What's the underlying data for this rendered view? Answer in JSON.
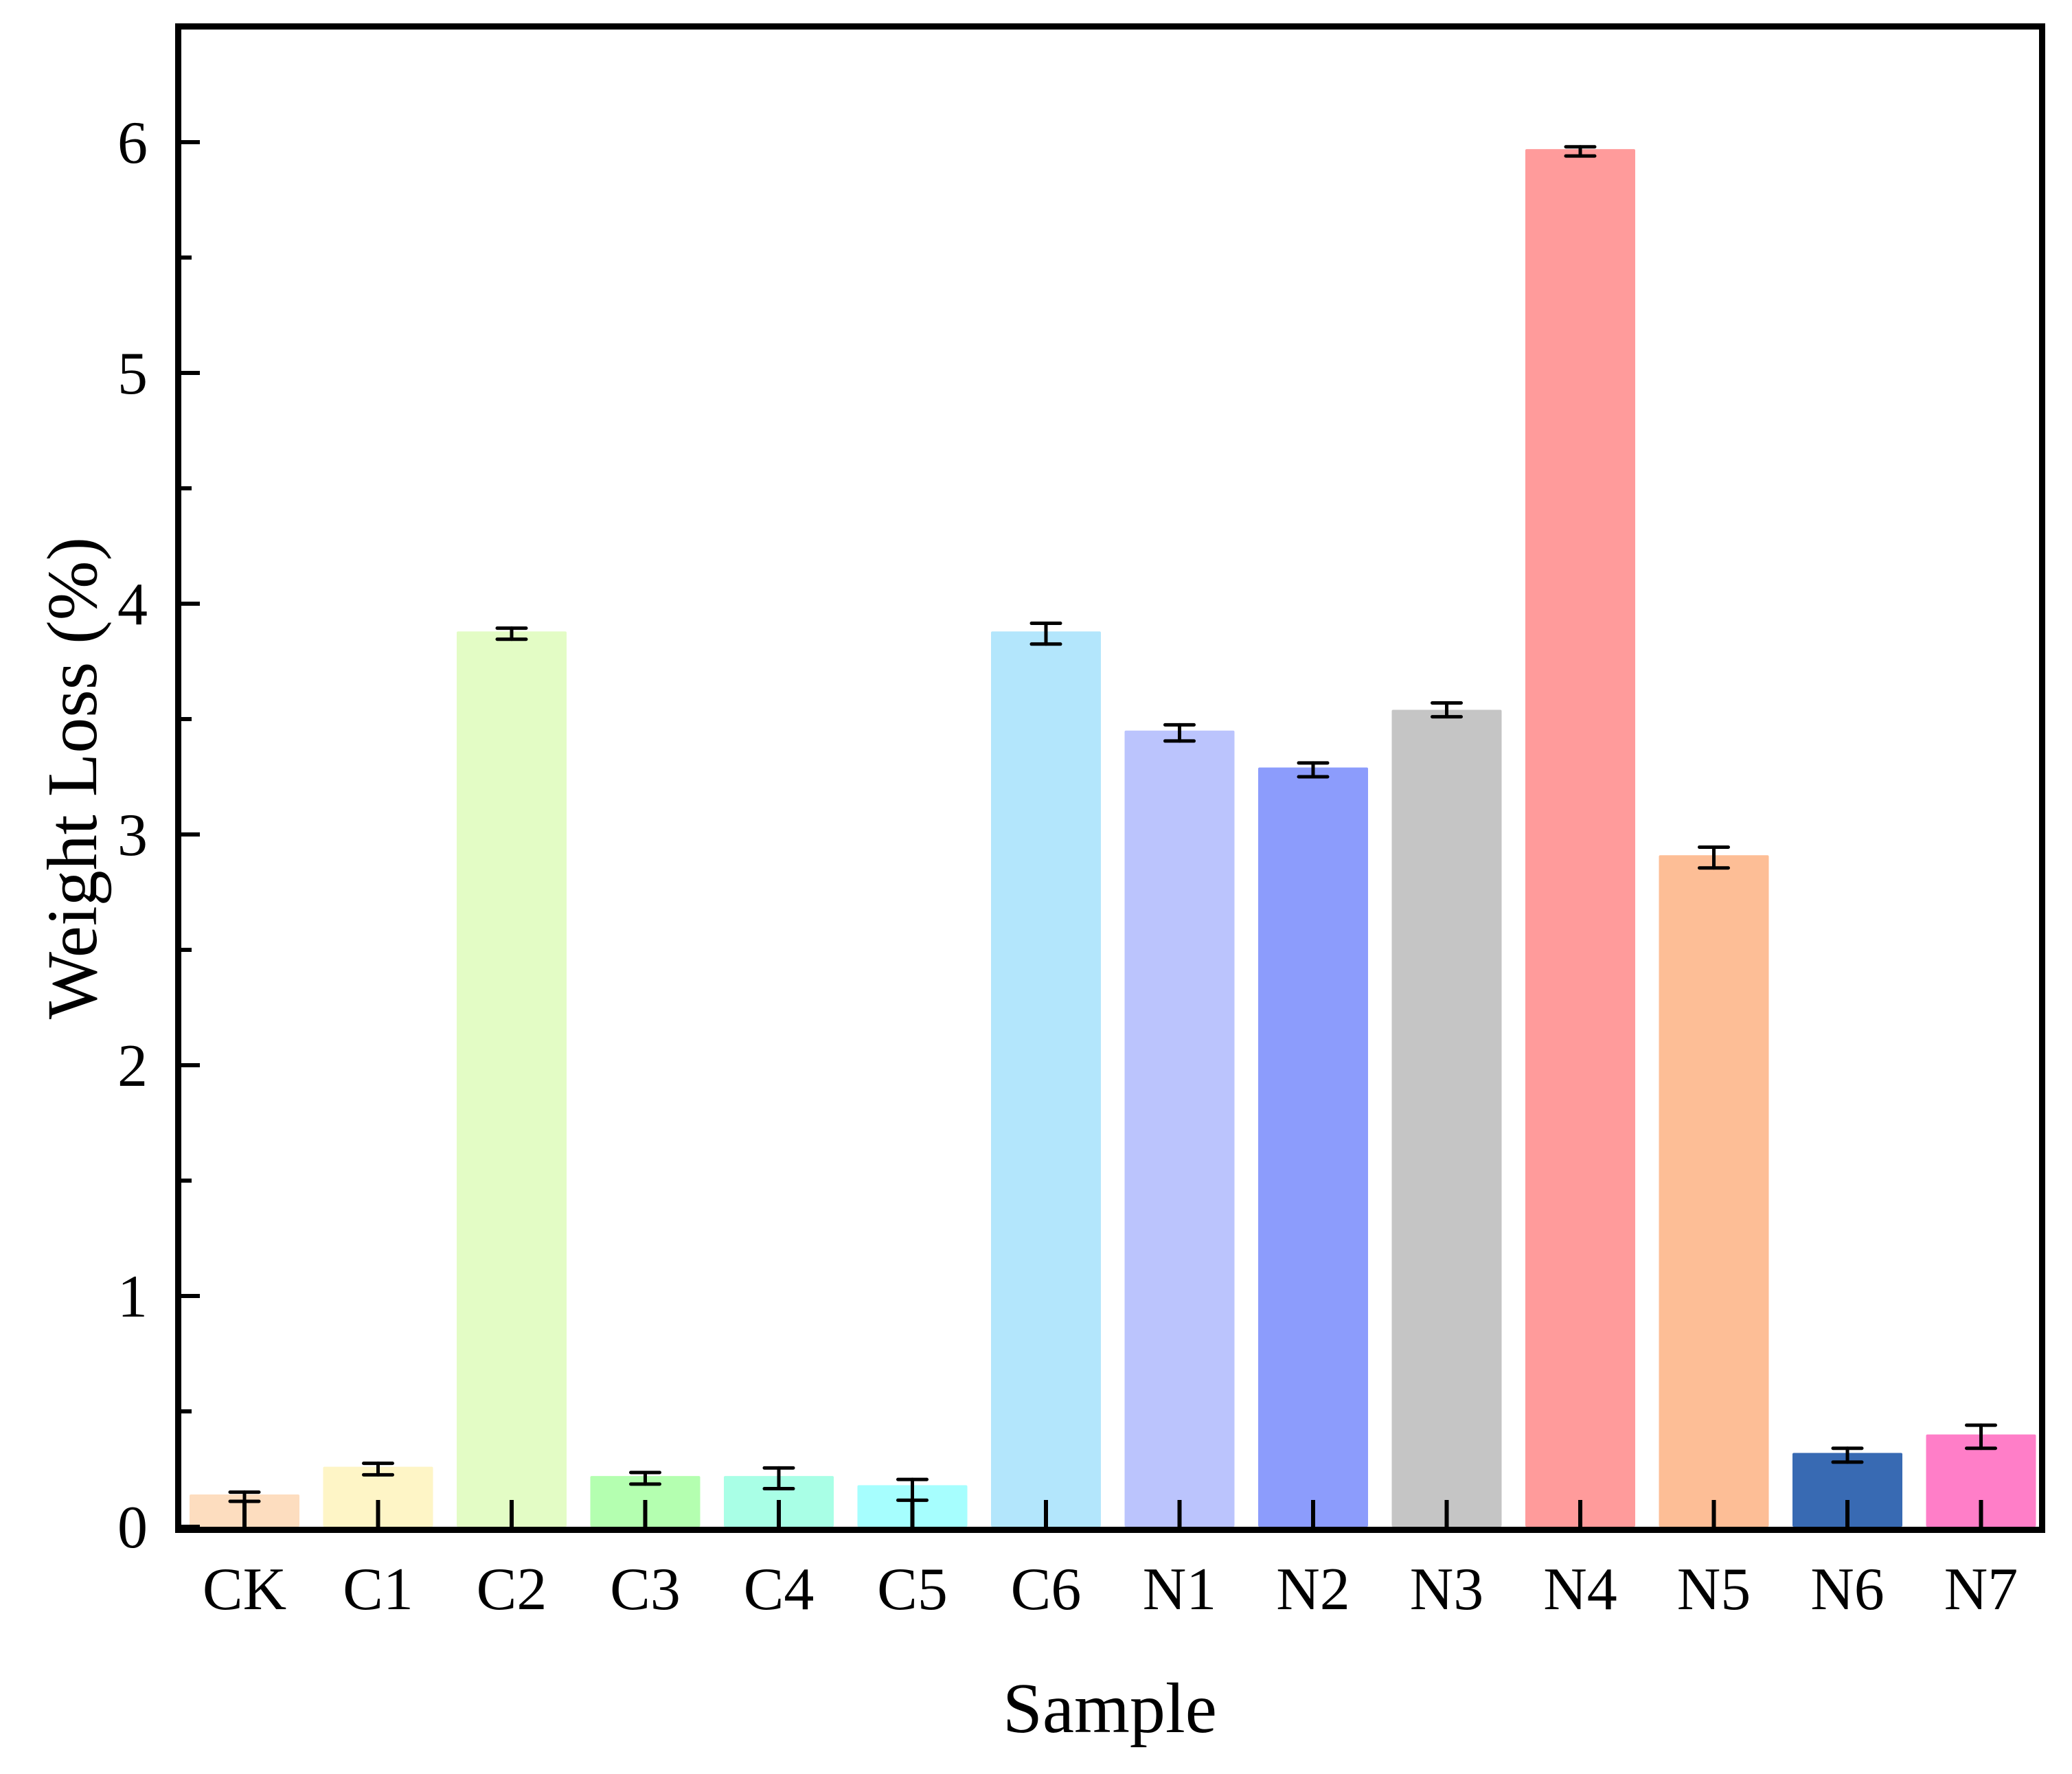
{
  "chart_data": {
    "type": "bar",
    "title": "",
    "xlabel": "Sample",
    "ylabel": "Weight Loss (%)",
    "ylim": [
      0,
      6.5
    ],
    "yticks": [
      0,
      1,
      2,
      3,
      4,
      5,
      6
    ],
    "yminor_step": 0.5,
    "grid": false,
    "legend": null,
    "categories": [
      "CK",
      "C1",
      "C2",
      "C3",
      "C4",
      "C5",
      "C6",
      "N1",
      "N2",
      "N3",
      "N4",
      "N5",
      "N6",
      "N7"
    ],
    "values": [
      0.14,
      0.26,
      3.88,
      0.22,
      0.22,
      0.18,
      3.88,
      3.45,
      3.29,
      3.54,
      5.97,
      2.91,
      0.32,
      0.4
    ],
    "error_center": [
      0.13,
      0.25,
      3.87,
      0.21,
      0.21,
      0.16,
      3.87,
      3.44,
      3.28,
      3.54,
      5.96,
      2.9,
      0.31,
      0.39
    ],
    "errors": [
      0.02,
      0.025,
      0.024,
      0.025,
      0.045,
      0.045,
      0.045,
      0.035,
      0.03,
      0.03,
      0.02,
      0.045,
      0.03,
      0.05
    ],
    "colors": [
      "#FDDDBF",
      "#FEF5C6",
      "#E3FCC5",
      "#B4FFB0",
      "#A9FFE6",
      "#A6FEFE",
      "#B3E6FC",
      "#BBC4FD",
      "#8C9CFC",
      "#C5C5C5",
      "#FF9B9B",
      "#FDBE96",
      "#386AB3",
      "#FF7EC8"
    ]
  }
}
